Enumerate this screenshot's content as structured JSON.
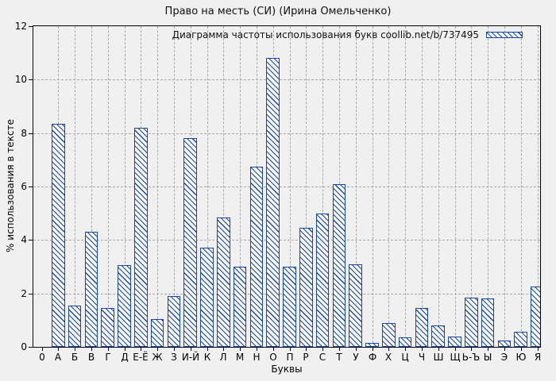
{
  "title": "Право на месть (СИ) (Ирина Омельченко)",
  "legend": {
    "label": "Диаграмма частоты использования букв coollib.net/b/737495"
  },
  "axes": {
    "ylabel": "% использования в тексте",
    "xlabel": "Буквы",
    "origin_label": "0",
    "y_ticks": [
      0,
      2,
      4,
      6,
      8,
      10,
      12
    ],
    "ylim": [
      0,
      12
    ]
  },
  "colors": {
    "bar_line": "#1747a6",
    "bar_fill": "#f9f9f9",
    "background": "#f0f0f0",
    "grid": "#a8a8a8",
    "axis": "#000000"
  },
  "chart_data": {
    "type": "bar",
    "title": "Право на месть (СИ) (Ирина Омельченко)",
    "legend": "Диаграмма частоты использования букв coollib.net/b/737495",
    "xlabel": "Буквы",
    "ylabel": "% использования в тексте",
    "ylim": [
      0,
      12
    ],
    "grid": true,
    "legend_position": "top-right",
    "hatch": "diagonal-backslash",
    "categories": [
      "А",
      "Б",
      "В",
      "Г",
      "Д",
      "Е-Ё",
      "Ж",
      "З",
      "И-Й",
      "К",
      "Л",
      "М",
      "Н",
      "О",
      "П",
      "Р",
      "С",
      "Т",
      "У",
      "Ф",
      "Х",
      "Ц",
      "Ч",
      "Ш",
      "Щ",
      "Ь-Ъ",
      "Ы",
      "Э",
      "Ю",
      "Я"
    ],
    "values": [
      8.35,
      1.55,
      4.3,
      1.45,
      3.05,
      8.2,
      1.05,
      1.9,
      7.8,
      3.7,
      4.85,
      3.0,
      6.75,
      10.8,
      3.0,
      4.45,
      5.0,
      6.1,
      3.1,
      0.15,
      0.9,
      0.35,
      1.45,
      0.8,
      0.4,
      1.85,
      1.8,
      0.25,
      0.55,
      2.25
    ]
  }
}
